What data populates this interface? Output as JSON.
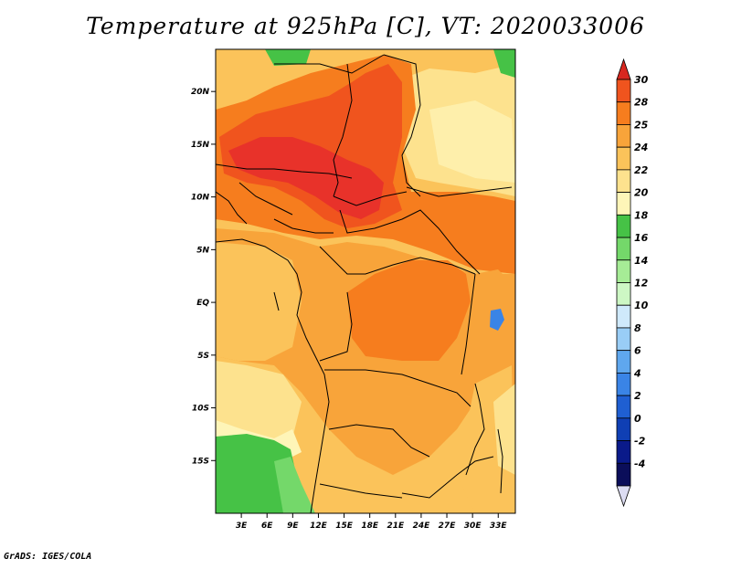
{
  "title": "Temperature at 925hPa [C], VT: 2020033006",
  "credit": "GrADS: IGES/COLA",
  "map": {
    "lon_range": [
      0,
      35
    ],
    "lat_range": [
      -20,
      24
    ],
    "lon_ticks": [
      "3E",
      "6E",
      "9E",
      "12E",
      "15E",
      "18E",
      "21E",
      "24E",
      "27E",
      "30E",
      "33E"
    ],
    "lat_ticks": [
      "20N",
      "15N",
      "10N",
      "5N",
      "EQ",
      "5S",
      "10S",
      "15S"
    ]
  },
  "colorbar": {
    "labels": [
      "30",
      "28",
      "25",
      "24",
      "22",
      "20",
      "18",
      "16",
      "14",
      "12",
      "10",
      "8",
      "6",
      "4",
      "2",
      "0",
      "-2",
      "-4"
    ],
    "colors": [
      "#e8322a",
      "#f0541e",
      "#f67d1e",
      "#f8a43a",
      "#fbc35a",
      "#fde28e",
      "#fef5b8",
      "#46c246",
      "#74d86a",
      "#a6ec96",
      "#cdf7c4",
      "#cfe9fb",
      "#99cdf6",
      "#5fa7ee",
      "#3a84e6",
      "#1f5fd2",
      "#0f3fb4",
      "#0a1a8a",
      "#0b0e5a"
    ],
    "top_arrow_color": "#d8271f",
    "bottom_arrow_color": "#dcdcf2"
  }
}
